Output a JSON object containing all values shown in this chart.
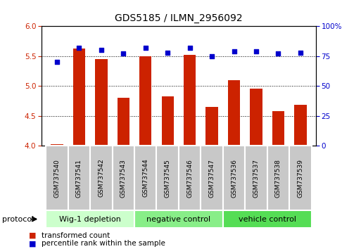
{
  "title": "GDS5185 / ILMN_2956092",
  "samples": [
    "GSM737540",
    "GSM737541",
    "GSM737542",
    "GSM737543",
    "GSM737544",
    "GSM737545",
    "GSM737546",
    "GSM737547",
    "GSM737536",
    "GSM737537",
    "GSM737538",
    "GSM737539"
  ],
  "red_values": [
    4.02,
    5.62,
    5.45,
    4.8,
    5.5,
    4.83,
    5.52,
    4.65,
    5.1,
    4.95,
    4.58,
    4.68
  ],
  "blue_values": [
    70,
    82,
    80,
    77,
    82,
    78,
    82,
    75,
    79,
    79,
    77,
    78
  ],
  "ylim_left": [
    4.0,
    6.0
  ],
  "ylim_right": [
    0,
    100
  ],
  "yticks_left": [
    4.0,
    4.5,
    5.0,
    5.5,
    6.0
  ],
  "yticks_right": [
    0,
    25,
    50,
    75,
    100
  ],
  "groups": [
    {
      "label": "Wig-1 depletion",
      "start": 0,
      "end": 4,
      "color": "#ccffcc"
    },
    {
      "label": "negative control",
      "start": 4,
      "end": 8,
      "color": "#88ee88"
    },
    {
      "label": "vehicle control",
      "start": 8,
      "end": 12,
      "color": "#55dd55"
    }
  ],
  "bar_color": "#cc2200",
  "dot_color": "#0000cc",
  "bar_bottom": 4.0,
  "protocol_label": "protocol",
  "legend_red": "transformed count",
  "legend_blue": "percentile rank within the sample",
  "title_fontsize": 10,
  "tick_fontsize": 7.5,
  "sample_fontsize": 6.5,
  "group_fontsize": 8
}
